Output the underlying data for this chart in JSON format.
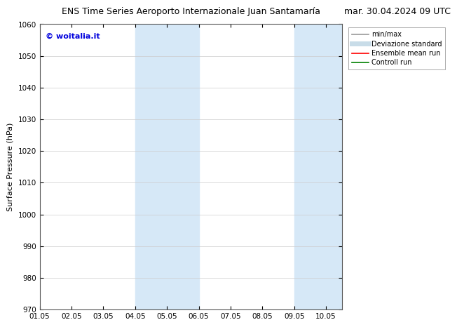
{
  "title_left": "ENS Time Series Aeroporto Internazionale Juan Santamaría",
  "title_right": "mar. 30.04.2024 09 UTC",
  "ylabel": "Surface Pressure (hPa)",
  "ylim": [
    970,
    1060
  ],
  "yticks": [
    970,
    980,
    990,
    1000,
    1010,
    1020,
    1030,
    1040,
    1050,
    1060
  ],
  "xlim_start": 0.0,
  "xlim_end": 9.5,
  "xtick_labels": [
    "01.05",
    "02.05",
    "03.05",
    "04.05",
    "05.05",
    "06.05",
    "07.05",
    "08.05",
    "09.05",
    "10.05"
  ],
  "xtick_positions": [
    0,
    1,
    2,
    3,
    4,
    5,
    6,
    7,
    8,
    9
  ],
  "shaded_bands": [
    {
      "x_start": 3.0,
      "x_end": 3.5,
      "color": "#d6e8f7"
    },
    {
      "x_start": 3.5,
      "x_end": 5.0,
      "color": "#d6e8f7"
    },
    {
      "x_start": 8.0,
      "x_end": 8.5,
      "color": "#d6e8f7"
    },
    {
      "x_start": 8.5,
      "x_end": 9.5,
      "color": "#d6e8f7"
    }
  ],
  "watermark_text": "© woitalia.it",
  "watermark_color": "#0000dd",
  "legend_entries": [
    {
      "label": "min/max",
      "color": "#999999",
      "lw": 1.2
    },
    {
      "label": "Deviazione standard",
      "color": "#c8dce8",
      "lw": 5
    },
    {
      "label": "Ensemble mean run",
      "color": "red",
      "lw": 1.2
    },
    {
      "label": "Controll run",
      "color": "green",
      "lw": 1.2
    }
  ],
  "bg_color": "#ffffff",
  "grid_color": "#cccccc",
  "title_fontsize": 9,
  "tick_fontsize": 7.5,
  "ylabel_fontsize": 8
}
